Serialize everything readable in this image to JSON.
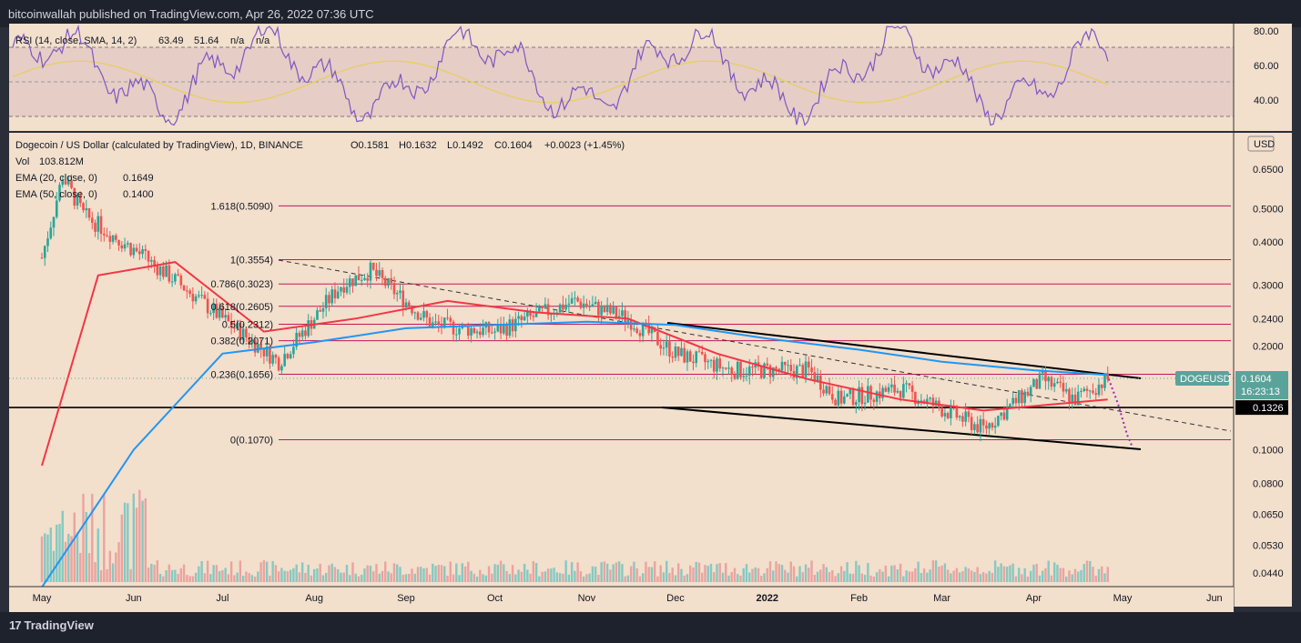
{
  "header": {
    "text": "bitcoinwallah published on TradingView.com, Apr 26, 2022 07:36 UTC"
  },
  "footer": {
    "brand": "TradingView"
  },
  "colors": {
    "background": "#f2dfcc",
    "rsi_band": "#e6d1c7",
    "up": "#26a69a",
    "down": "#ef5350",
    "rsi": "#7e57c2",
    "rsi_sma": "#e6d36b",
    "ema20": "#2196f3",
    "ema50": "#f23645",
    "fib": "#c2185b",
    "frame": "#1e222d"
  },
  "rsi_panel": {
    "legend": {
      "name": "RSI (14, close, SMA, 14, 2)",
      "rsi_value": "63.49",
      "sma_value": "51.64",
      "na1": "n/a",
      "na2": "n/a"
    },
    "axis_ticks": [
      "80.00",
      "60.00",
      "40.00"
    ]
  },
  "price_panel": {
    "legend": {
      "title": "Dogecoin / US Dollar (calculated by TradingView), 1D, BINANCE",
      "open": "O0.1581",
      "high": "H0.1632",
      "low": "L0.1492",
      "close": "C0.1604",
      "change": "+0.0023 (+1.45%)",
      "vol_label": "Vol",
      "vol_value": "103.812M",
      "ema20_label": "EMA (20, close, 0)",
      "ema20_value": "0.1649",
      "ema50_label": "EMA (50, close, 0)",
      "ema50_value": "0.1400"
    },
    "currency": "USD",
    "axis_ticks": [
      "0.6500",
      "0.5000",
      "0.4000",
      "0.3000",
      "0.2400",
      "0.2000",
      "0.1000",
      "0.0800",
      "0.0650",
      "0.0530",
      "0.0440"
    ],
    "symbol_tag": "DOGEUSD",
    "last_price": "0.1604",
    "countdown": "16:23:13",
    "support_tag": "0.1326"
  },
  "x_axis_labels": [
    "May",
    "Jun",
    "Jul",
    "Aug",
    "Sep",
    "Oct",
    "Nov",
    "Dec",
    "2022",
    "Feb",
    "Mar",
    "Apr",
    "May",
    "Jun"
  ],
  "chart_data": {
    "type": "line",
    "title": "Dogecoin / US Dollar (calculated by TradingView), 1D, BINANCE",
    "scale": "log",
    "ylim": [
      0.04,
      0.72
    ],
    "fib_levels": [
      {
        "label": "1.618(0.5090)",
        "value": 0.509
      },
      {
        "label": "1(0.3554)",
        "value": 0.3554
      },
      {
        "label": "0.786(0.3023)",
        "value": 0.3023
      },
      {
        "label": "0.618(0.2605)",
        "value": 0.2605
      },
      {
        "label": "0.5(0.2312)",
        "value": 0.2312
      },
      {
        "label": "0.382(0.2071)",
        "value": 0.2071
      },
      {
        "label": "0.236(0.1656)",
        "value": 0.1656
      },
      {
        "label": "0(0.1070)",
        "value": 0.107
      }
    ],
    "support_level": 0.1326,
    "series": [
      {
        "name": "DOGEUSD",
        "x": [
          "2021-05-01",
          "2021-05-08",
          "2021-05-15",
          "2021-06-01",
          "2021-06-15",
          "2021-07-01",
          "2021-07-20",
          "2021-08-10",
          "2021-08-20",
          "2021-09-10",
          "2021-10-01",
          "2021-10-28",
          "2021-11-15",
          "2021-12-01",
          "2021-12-20",
          "2022-01-15",
          "2022-01-25",
          "2022-02-15",
          "2022-03-15",
          "2022-04-04",
          "2022-04-15",
          "2022-04-26"
        ],
        "values": [
          0.36,
          0.62,
          0.48,
          0.38,
          0.31,
          0.24,
          0.18,
          0.3,
          0.33,
          0.23,
          0.22,
          0.27,
          0.24,
          0.19,
          0.17,
          0.17,
          0.14,
          0.15,
          0.115,
          0.16,
          0.14,
          0.1604
        ]
      },
      {
        "name": "EMA 20",
        "x": [
          "2021-05-01",
          "2021-06-01",
          "2021-07-01",
          "2021-08-01",
          "2021-09-01",
          "2021-10-01",
          "2021-11-01",
          "2021-12-01",
          "2022-01-01",
          "2022-02-01",
          "2022-03-01",
          "2022-04-01",
          "2022-04-26"
        ],
        "values": [
          0.04,
          0.1,
          0.19,
          0.205,
          0.225,
          0.23,
          0.235,
          0.23,
          0.21,
          0.195,
          0.18,
          0.17,
          0.1649
        ]
      },
      {
        "name": "EMA 50",
        "x": [
          "2021-05-01",
          "2021-05-20",
          "2021-06-15",
          "2021-07-15",
          "2021-08-15",
          "2021-09-15",
          "2021-10-15",
          "2021-11-15",
          "2021-12-15",
          "2022-01-15",
          "2022-02-15",
          "2022-03-15",
          "2022-04-26"
        ],
        "values": [
          0.09,
          0.32,
          0.35,
          0.22,
          0.24,
          0.27,
          0.25,
          0.24,
          0.19,
          0.16,
          0.14,
          0.13,
          0.14
        ]
      }
    ]
  }
}
